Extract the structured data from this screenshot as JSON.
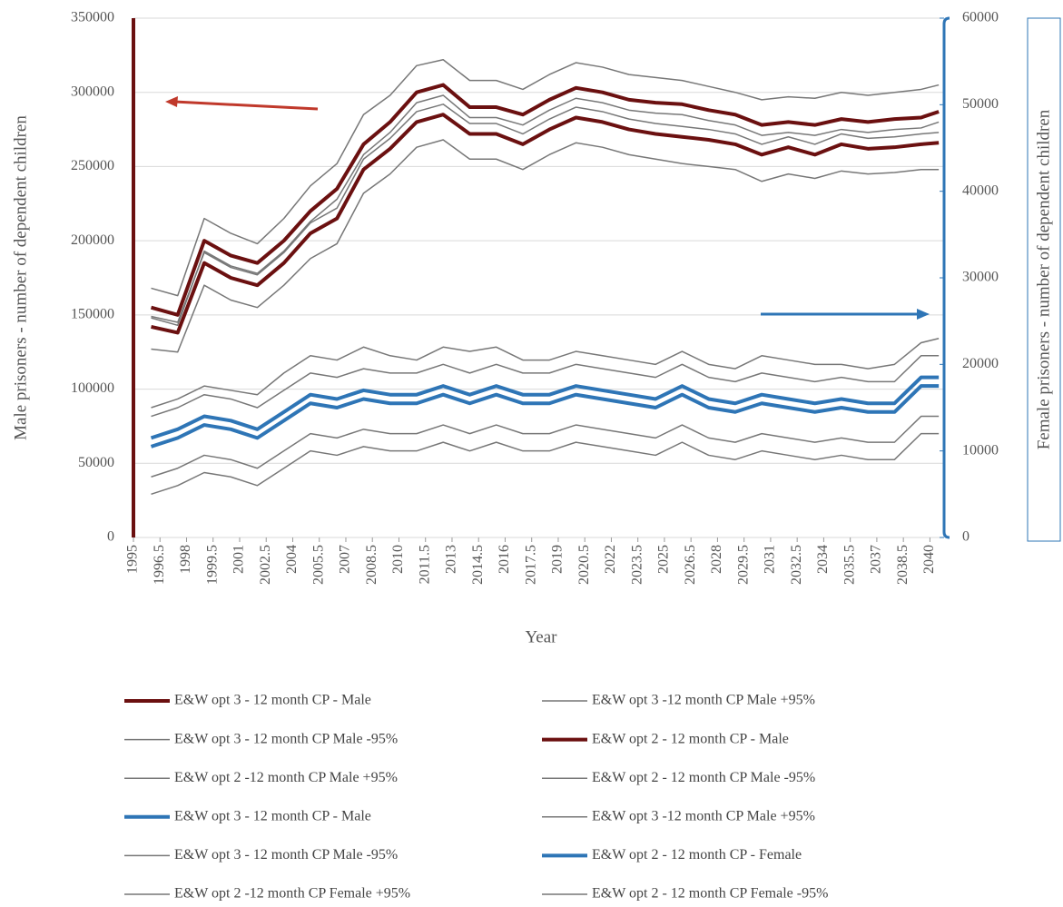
{
  "chart_data": {
    "type": "line",
    "x_label": "Year",
    "y_label": "Male prisoners - number of dependent children",
    "y2_label": "Female prisoners - number of dependent children",
    "x": [
      1996,
      1997.5,
      1999,
      2000.5,
      2002,
      2003.5,
      2005,
      2006.5,
      2008,
      2009.5,
      2011,
      2012.5,
      2014,
      2015.5,
      2017,
      2018.5,
      2020,
      2021.5,
      2023,
      2024.5,
      2026,
      2027.5,
      2029,
      2030.5,
      2032,
      2033.5,
      2035,
      2036.5,
      2038,
      2039.5,
      2040.5
    ],
    "xlim": [
      1995,
      2040.8
    ],
    "xticks": [
      1995,
      1996.5,
      1998,
      1999.5,
      2001,
      2002.5,
      2004,
      2005.5,
      2007,
      2008.5,
      2010,
      2011.5,
      2013,
      2014.5,
      2016,
      2017.5,
      2019,
      2020.5,
      2022,
      2023.5,
      2025,
      2026.5,
      2028,
      2029.5,
      2031,
      2032.5,
      2034,
      2035.5,
      2037,
      2038.5,
      2040
    ],
    "ylim": [
      0,
      350000
    ],
    "yticks": [
      0,
      50000,
      100000,
      150000,
      200000,
      250000,
      300000,
      350000
    ],
    "y2lim": [
      0,
      60000
    ],
    "y2ticks": [
      0,
      10000,
      20000,
      30000,
      40000,
      50000,
      60000
    ],
    "grid": true,
    "series": [
      {
        "name": "E&W opt  3 - 12 month  CP - Male",
        "color": "#6b1010",
        "line_width": 4,
        "values": [
          155000,
          150000,
          200000,
          190000,
          185000,
          200000,
          220000,
          235000,
          265000,
          280000,
          300000,
          305000,
          290000,
          290000,
          285000,
          295000,
          303000,
          300000,
          295000,
          293000,
          292000,
          288000,
          285000,
          278000,
          280000,
          278000,
          282000,
          280000,
          282000,
          283000,
          287000
        ]
      },
      {
        "name": "E&W opt 3 -12 month CP Male +95%",
        "color": "#777777",
        "line_width": 1.5,
        "values": [
          168000,
          163000,
          215000,
          205000,
          198000,
          215000,
          237000,
          252000,
          285000,
          298000,
          318000,
          322000,
          308000,
          308000,
          302000,
          312000,
          320000,
          317000,
          312000,
          310000,
          308000,
          304000,
          300000,
          295000,
          297000,
          296000,
          300000,
          298000,
          300000,
          302000,
          305000
        ]
      },
      {
        "name": "E&W opt 3 - 12 month CP Male -95%",
        "color": "#777777",
        "line_width": 1.5,
        "values": [
          148000,
          143000,
          193000,
          183000,
          178000,
          193000,
          213000,
          228000,
          258000,
          273000,
          293000,
          298000,
          283000,
          283000,
          278000,
          288000,
          296000,
          293000,
          288000,
          286000,
          285000,
          281000,
          278000,
          271000,
          273000,
          271000,
          275000,
          273000,
          275000,
          276000,
          280000
        ]
      },
      {
        "name": "E&W opt  2 - 12 month  CP - Male",
        "color": "#6b1010",
        "line_width": 4,
        "values": [
          142000,
          138000,
          185000,
          175000,
          170000,
          185000,
          205000,
          215000,
          248000,
          262000,
          280000,
          285000,
          272000,
          272000,
          265000,
          275000,
          283000,
          280000,
          275000,
          272000,
          270000,
          268000,
          265000,
          258000,
          263000,
          258000,
          265000,
          262000,
          263000,
          265000,
          266000
        ]
      },
      {
        "name": "E&W opt 2 -12 month CP Male +95%",
        "color": "#777777",
        "line_width": 1.5,
        "values": [
          149000,
          145000,
          192000,
          182000,
          177000,
          192000,
          212000,
          222000,
          255000,
          269000,
          287000,
          292000,
          279000,
          279000,
          272000,
          282000,
          290000,
          287000,
          282000,
          279000,
          277000,
          275000,
          272000,
          265000,
          270000,
          265000,
          272000,
          269000,
          270000,
          272000,
          273000
        ]
      },
      {
        "name": "E&W opt 2 - 12 month CP Male -95%",
        "color": "#777777",
        "line_width": 1.5,
        "values": [
          127000,
          125000,
          170000,
          160000,
          155000,
          170000,
          188000,
          198000,
          232000,
          245000,
          263000,
          268000,
          255000,
          255000,
          248000,
          258000,
          266000,
          263000,
          258000,
          255000,
          252000,
          250000,
          248000,
          240000,
          245000,
          242000,
          247000,
          245000,
          246000,
          248000,
          248000
        ]
      },
      {
        "name": "E&W opt  3 - 12 month  CP - Male",
        "color": "#2e75b6",
        "line_width": 4,
        "axis": "y2",
        "values": [
          11500,
          12500,
          14000,
          13500,
          12500,
          14500,
          16500,
          16000,
          17000,
          16500,
          16500,
          17500,
          16500,
          17500,
          16500,
          16500,
          17500,
          17000,
          16500,
          16000,
          17500,
          16000,
          15500,
          16500,
          16000,
          15500,
          16000,
          15500,
          15500,
          18500,
          18500
        ]
      },
      {
        "name": "E&W opt 3 -12 month CP Male +95%",
        "color": "#777777",
        "line_width": 1.5,
        "axis": "y2",
        "values": [
          15000,
          16000,
          17500,
          17000,
          16500,
          19000,
          21000,
          20500,
          22000,
          21000,
          20500,
          22000,
          21500,
          22000,
          20500,
          20500,
          21500,
          21000,
          20500,
          20000,
          21500,
          20000,
          19500,
          21000,
          20500,
          20000,
          20000,
          19500,
          20000,
          22500,
          23000
        ]
      },
      {
        "name": "E&W opt 3 - 12 month CP Male -95%",
        "color": "#777777",
        "line_width": 1.5,
        "axis": "y2",
        "values": [
          7000,
          8000,
          9500,
          9000,
          8000,
          10000,
          12000,
          11500,
          12500,
          12000,
          12000,
          13000,
          12000,
          13000,
          12000,
          12000,
          13000,
          12500,
          12000,
          11500,
          13000,
          11500,
          11000,
          12000,
          11500,
          11000,
          11500,
          11000,
          11000,
          14000,
          14000
        ]
      },
      {
        "name": "E&W opt  2 - 12 month  CP - Female",
        "color": "#2e75b6",
        "line_width": 4,
        "axis": "y2",
        "values": [
          10500,
          11500,
          13000,
          12500,
          11500,
          13500,
          15500,
          15000,
          16000,
          15500,
          15500,
          16500,
          15500,
          16500,
          15500,
          15500,
          16500,
          16000,
          15500,
          15000,
          16500,
          15000,
          14500,
          15500,
          15000,
          14500,
          15000,
          14500,
          14500,
          17500,
          17500
        ]
      },
      {
        "name": "E&W opt 2 -12 month CP Female +95%",
        "color": "#777777",
        "line_width": 1.5,
        "axis": "y2",
        "values": [
          14000,
          15000,
          16500,
          16000,
          15000,
          17000,
          19000,
          18500,
          19500,
          19000,
          19000,
          20000,
          19000,
          20000,
          19000,
          19000,
          20000,
          19500,
          19000,
          18500,
          20000,
          18500,
          18000,
          19000,
          18500,
          18000,
          18500,
          18000,
          18000,
          21000,
          21000
        ]
      },
      {
        "name": "E&W opt 2 - 12 month CP Female -95%",
        "color": "#777777",
        "line_width": 1.5,
        "axis": "y2",
        "values": [
          5000,
          6000,
          7500,
          7000,
          6000,
          8000,
          10000,
          9500,
          10500,
          10000,
          10000,
          11000,
          10000,
          11000,
          10000,
          10000,
          11000,
          10500,
          10000,
          9500,
          11000,
          9500,
          9000,
          10000,
          9500,
          9000,
          9500,
          9000,
          9000,
          12000,
          12000
        ]
      }
    ]
  }
}
